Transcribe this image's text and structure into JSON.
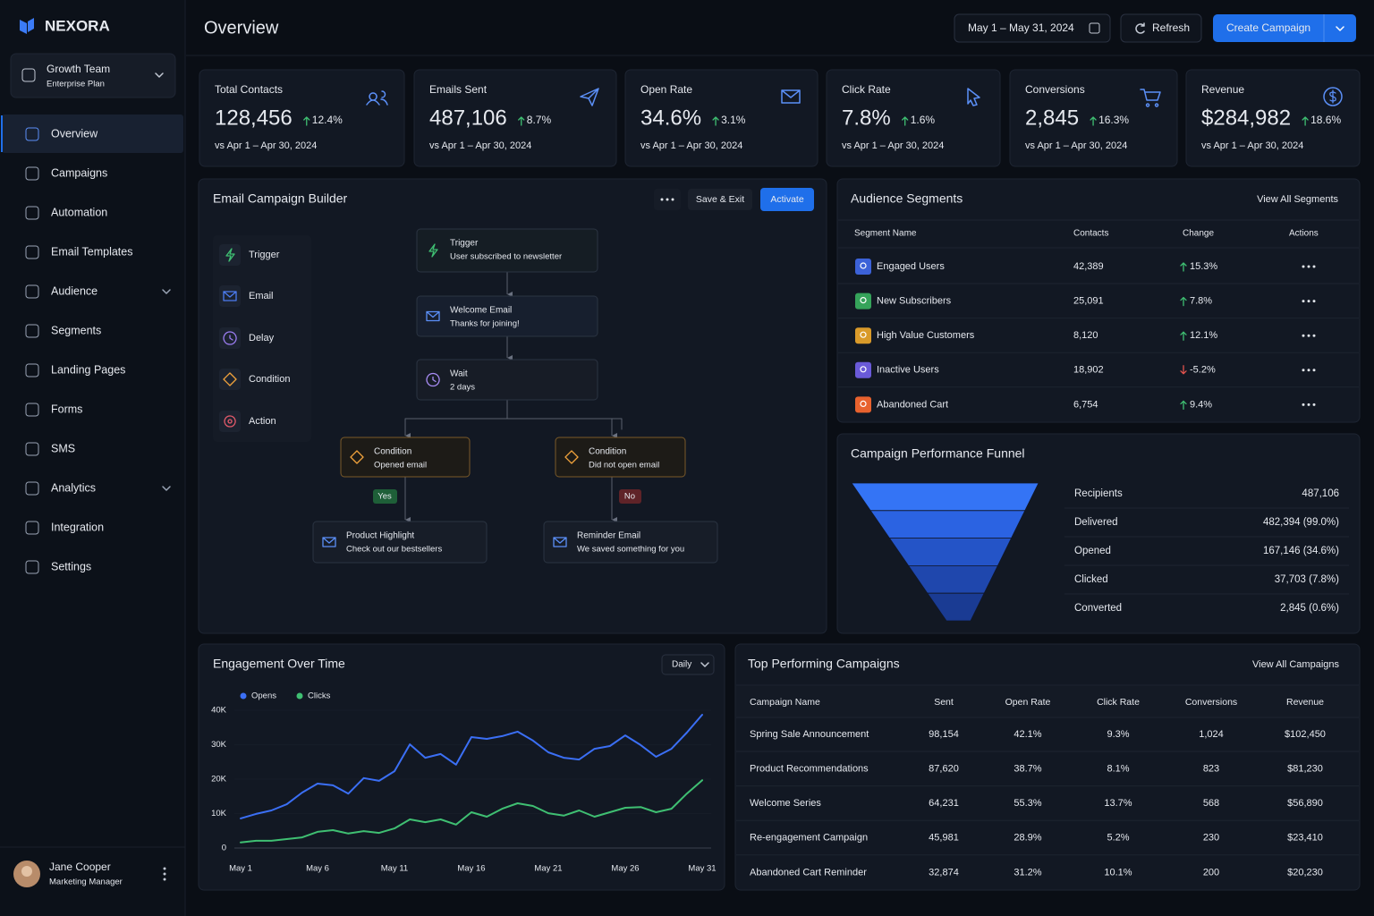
{
  "brand": "NEXORA",
  "workspace": {
    "name": "Growth Team",
    "plan": "Enterprise Plan"
  },
  "nav": [
    "Overview",
    "Campaigns",
    "Automation",
    "Email Templates",
    "Audience",
    "Segments",
    "Landing Pages",
    "Forms",
    "SMS",
    "Analytics",
    "Integration",
    "Settings"
  ],
  "user": {
    "name": "Jane Cooper",
    "role": "Marketing Manager"
  },
  "header": {
    "title": "Overview",
    "date_range": "May 1 – May 31, 2024",
    "refresh": "Refresh",
    "create": "Create Campaign"
  },
  "kpis": [
    {
      "label": "Total Contacts",
      "value": "128,456",
      "change": "12.4%",
      "compare": "vs Apr 1 – Apr 30, 2024"
    },
    {
      "label": "Emails Sent",
      "value": "487,106",
      "change": "8.7%",
      "compare": "vs Apr 1 – Apr 30, 2024"
    },
    {
      "label": "Open Rate",
      "value": "34.6%",
      "change": "3.1%",
      "compare": "vs Apr 1 – Apr 30, 2024"
    },
    {
      "label": "Click Rate",
      "value": "7.8%",
      "change": "1.6%",
      "compare": "vs Apr 1 – Apr 30, 2024"
    },
    {
      "label": "Conversions",
      "value": "2,845",
      "change": "16.3%",
      "compare": "vs Apr 1 – Apr 30, 2024"
    },
    {
      "label": "Revenue",
      "value": "$284,982",
      "change": "18.6%",
      "compare": "vs Apr 1 – Apr 30, 2024"
    }
  ],
  "builder": {
    "title": "Email Campaign Builder",
    "save": "Save & Exit",
    "activate": "Activate",
    "palette": [
      "Trigger",
      "Email",
      "Delay",
      "Condition",
      "Action"
    ],
    "nodes": [
      {
        "title": "Trigger",
        "subtitle": "User subscribed to newsletter"
      },
      {
        "title": "Welcome Email",
        "subtitle": "Thanks for joining!"
      },
      {
        "title": "Wait",
        "subtitle": "2 days"
      },
      {
        "title": "Condition",
        "subtitle": "Opened email"
      },
      {
        "title": "Condition",
        "subtitle": "Did not open email"
      },
      {
        "title": "Product Highlight",
        "subtitle": "Check out our bestsellers"
      },
      {
        "title": "Reminder Email",
        "subtitle": "We saved something for you"
      }
    ],
    "yes": "Yes",
    "no": "No"
  },
  "segments": {
    "title": "Audience Segments",
    "view_all": "View All Segments",
    "columns": [
      "Segment Name",
      "Contacts",
      "Change",
      "Actions"
    ],
    "rows": [
      [
        "Engaged Users",
        "42,389",
        "15.3%"
      ],
      [
        "New Subscribers",
        "25,091",
        "7.8%"
      ],
      [
        "High Value Customers",
        "8,120",
        "12.1%"
      ],
      [
        "Inactive Users",
        "18,902",
        "-5.2%"
      ],
      [
        "Abandoned Cart",
        "6,754",
        "9.4%"
      ]
    ]
  },
  "funnel": {
    "title": "Campaign Performance Funnel",
    "stages": [
      {
        "label": "Recipients",
        "value": "487,106"
      },
      {
        "label": "Delivered",
        "value": "482,394 (99.0%)"
      },
      {
        "label": "Opened",
        "value": "167,146 (34.6%)"
      },
      {
        "label": "Clicked",
        "value": "37,703 (7.8%)"
      },
      {
        "label": "Converted",
        "value": "2,845 (0.6%)"
      }
    ]
  },
  "engagement": {
    "type": "line",
    "title": "Engagement Over Time",
    "period": "Daily",
    "categories": [
      "May 1",
      null,
      null,
      null,
      null,
      "May 6",
      null,
      null,
      null,
      null,
      "May 11",
      null,
      null,
      null,
      null,
      "May 16",
      null,
      null,
      null,
      null,
      "May 21",
      null,
      null,
      null,
      null,
      "May 26",
      null,
      null,
      null,
      null,
      "May 31"
    ],
    "series": [
      {
        "name": "Opens",
        "color": "#3b6ff5",
        "values": [
          8600,
          9900,
          10900,
          12700,
          16100,
          18700,
          18200,
          15800,
          20300,
          19500,
          22300,
          30100,
          26200,
          27300,
          24200,
          32200,
          31700,
          32500,
          33800,
          31200,
          27800,
          26200,
          25700,
          28800,
          29600,
          32700,
          29900,
          26500,
          28800,
          33500,
          38700
        ]
      },
      {
        "name": "Clicks",
        "color": "#3fbf72",
        "values": [
          1600,
          2100,
          2100,
          2600,
          3100,
          4700,
          5200,
          4200,
          4900,
          4400,
          5700,
          8300,
          7500,
          8300,
          6800,
          10400,
          9100,
          11400,
          13000,
          12200,
          10100,
          9400,
          10900,
          9100,
          10400,
          11700,
          11900,
          10400,
          11400,
          15800,
          19700
        ]
      }
    ],
    "ylim": [
      0,
      40000
    ],
    "yticks": [
      0,
      {
        "value": 10000,
        "label": "10K"
      },
      {
        "value": 20000,
        "label": "20K"
      },
      {
        "value": 30000,
        "label": "30K"
      },
      {
        "value": 40000,
        "label": "40K"
      }
    ],
    "grid": true
  },
  "campaigns": {
    "title": "Top Performing Campaigns",
    "view_all": "View All Campaigns",
    "columns": [
      "Campaign Name",
      "Sent",
      "Open Rate",
      "Click Rate",
      "Conversions",
      "Revenue"
    ],
    "rows": [
      [
        "Spring Sale Announcement",
        "98,154",
        "42.1%",
        "9.3%",
        "1,024",
        "$102,450"
      ],
      [
        "Product Recommendations",
        "87,620",
        "38.7%",
        "8.1%",
        "823",
        "$81,230"
      ],
      [
        "Welcome Series",
        "64,231",
        "55.3%",
        "13.7%",
        "568",
        "$56,890"
      ],
      [
        "Re-engagement Campaign",
        "45,981",
        "28.9%",
        "5.2%",
        "230",
        "$23,410"
      ],
      [
        "Abandoned Cart Reminder",
        "32,874",
        "31.2%",
        "10.1%",
        "200",
        "$20,230"
      ]
    ]
  }
}
